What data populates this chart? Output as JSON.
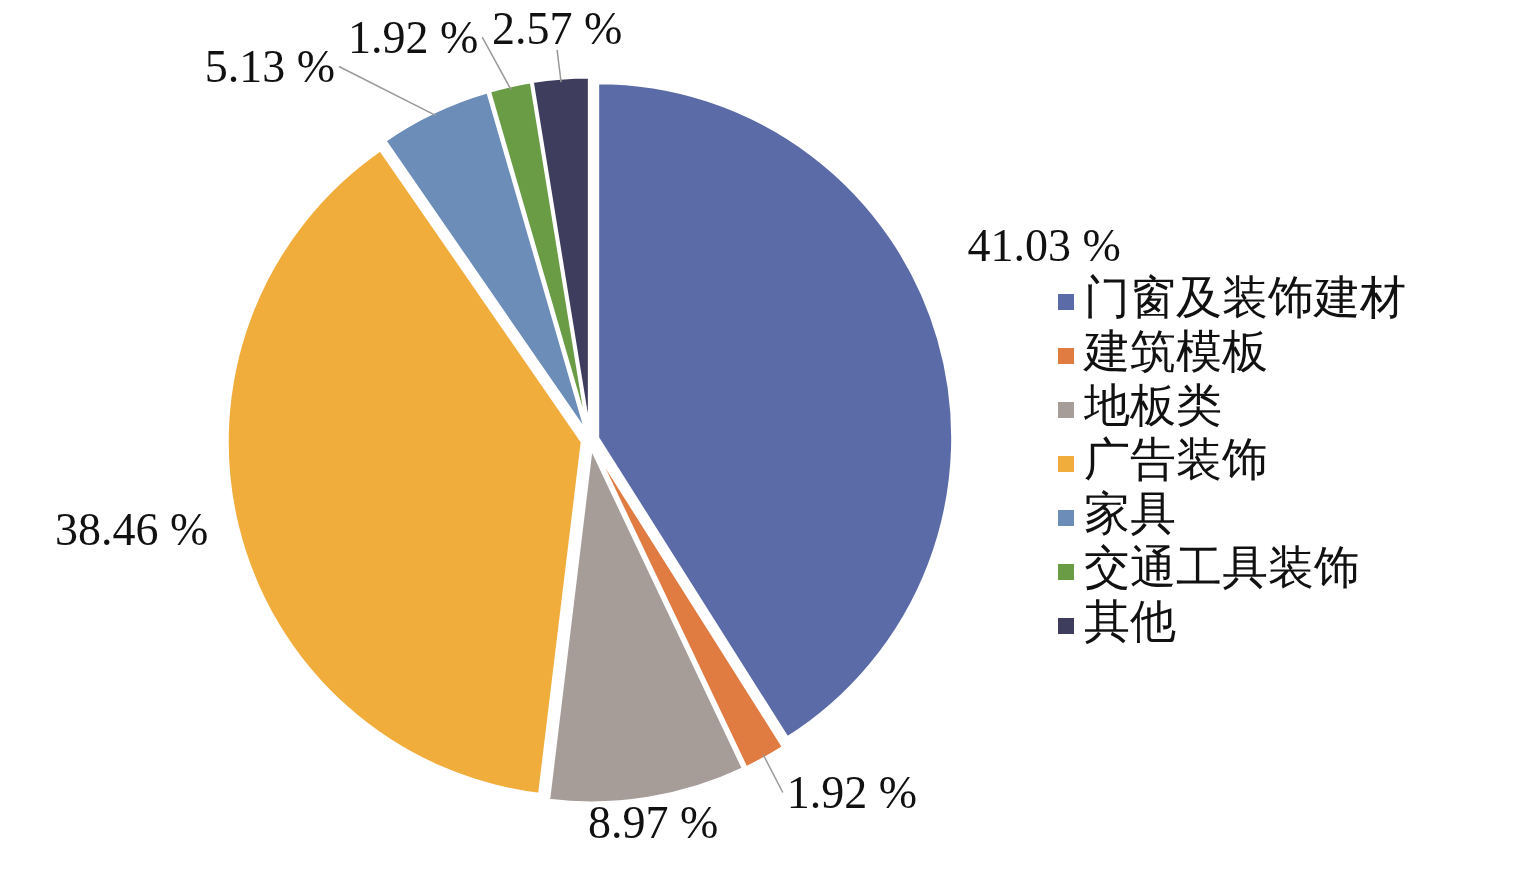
{
  "chart_data": {
    "type": "pie",
    "categories": [
      "门窗及装饰建材",
      "建筑模板",
      "地板类",
      "广告装饰",
      "家具",
      "交通工具装饰",
      "其他"
    ],
    "values": [
      41.03,
      1.92,
      8.97,
      38.46,
      5.13,
      1.92,
      2.57
    ],
    "value_labels": [
      "41.03 %",
      "1.92 %",
      "8.97 %",
      "38.46 %",
      "5.13 %",
      "1.92 %",
      "2.57 %"
    ],
    "colors": [
      "#5b6ba7",
      "#e07b42",
      "#a69d99",
      "#f0ad3c",
      "#6b8db8",
      "#6a9b45",
      "#3f3d5e"
    ],
    "legend": "right"
  }
}
